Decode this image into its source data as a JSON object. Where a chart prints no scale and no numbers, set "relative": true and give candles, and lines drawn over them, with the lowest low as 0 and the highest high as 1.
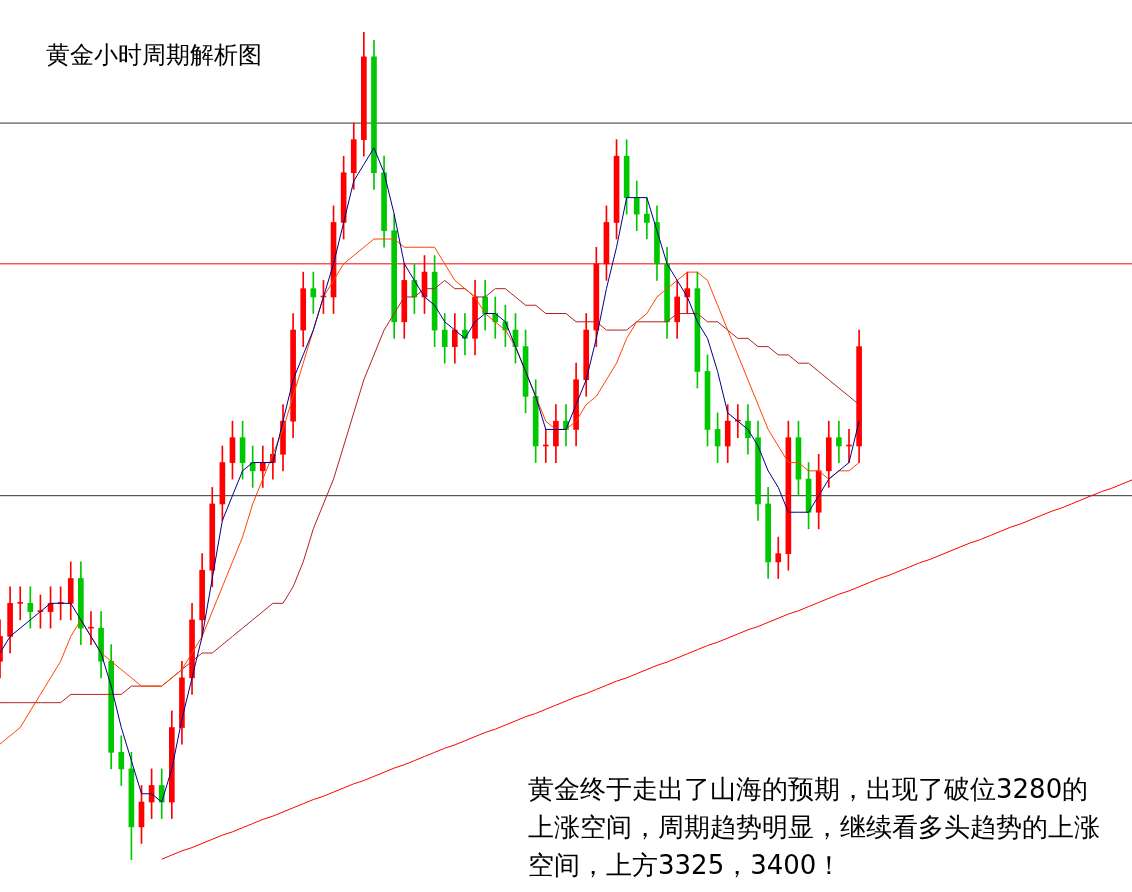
{
  "chart_data": {
    "type": "candlestick",
    "title": "黄金小时周期解析图",
    "relative": true,
    "categories": [
      null,
      null,
      null,
      null,
      null,
      null,
      null,
      null,
      null,
      null,
      null,
      null,
      null,
      null,
      null,
      null,
      null,
      null,
      null,
      null,
      null,
      null,
      null,
      null,
      null,
      null,
      null,
      null,
      null,
      null,
      null,
      null,
      null,
      null,
      null,
      null,
      null,
      null,
      null,
      null,
      null,
      null,
      null,
      null,
      null,
      null,
      null,
      null,
      null,
      null,
      null,
      null,
      null,
      null,
      null,
      null,
      null,
      null,
      null,
      null,
      null,
      null,
      null,
      null,
      null,
      null,
      null,
      null,
      null,
      null,
      null,
      null,
      null,
      null,
      null,
      null,
      null,
      null,
      null,
      null,
      null,
      null,
      null,
      null,
      null,
      null,
      null,
      null,
      null,
      null,
      null,
      null,
      null,
      null,
      null,
      null,
      null,
      null,
      null,
      null,
      null,
      null,
      null,
      null,
      null,
      null,
      null,
      null,
      null,
      null,
      null,
      null,
      null
    ],
    "ohlc": [
      [
        0.24,
        0.29,
        0.22,
        0.27
      ],
      [
        0.27,
        0.33,
        0.25,
        0.31
      ],
      [
        0.31,
        0.33,
        0.29,
        0.31
      ],
      [
        0.31,
        0.33,
        0.28,
        0.3
      ],
      [
        0.3,
        0.32,
        0.28,
        0.3
      ],
      [
        0.3,
        0.33,
        0.28,
        0.31
      ],
      [
        0.31,
        0.33,
        0.29,
        0.31
      ],
      [
        0.31,
        0.36,
        0.29,
        0.34
      ],
      [
        0.34,
        0.36,
        0.26,
        0.28
      ],
      [
        0.28,
        0.3,
        0.26,
        0.28
      ],
      [
        0.28,
        0.3,
        0.22,
        0.24
      ],
      [
        0.24,
        0.26,
        0.11,
        0.13
      ],
      [
        0.13,
        0.15,
        0.09,
        0.11
      ],
      [
        0.11,
        0.13,
        0.0,
        0.04
      ],
      [
        0.04,
        0.09,
        0.02,
        0.07
      ],
      [
        0.07,
        0.11,
        0.05,
        0.09
      ],
      [
        0.09,
        0.11,
        0.05,
        0.07
      ],
      [
        0.07,
        0.18,
        0.05,
        0.16
      ],
      [
        0.16,
        0.24,
        0.14,
        0.22
      ],
      [
        0.22,
        0.31,
        0.2,
        0.29
      ],
      [
        0.29,
        0.37,
        0.27,
        0.35
      ],
      [
        0.35,
        0.45,
        0.33,
        0.43
      ],
      [
        0.43,
        0.5,
        0.41,
        0.48
      ],
      [
        0.48,
        0.53,
        0.46,
        0.51
      ],
      [
        0.51,
        0.53,
        0.46,
        0.48
      ],
      [
        0.48,
        0.5,
        0.45,
        0.47
      ],
      [
        0.47,
        0.5,
        0.45,
        0.48
      ],
      [
        0.48,
        0.51,
        0.46,
        0.49
      ],
      [
        0.49,
        0.55,
        0.47,
        0.53
      ],
      [
        0.53,
        0.66,
        0.51,
        0.64
      ],
      [
        0.64,
        0.71,
        0.62,
        0.69
      ],
      [
        0.69,
        0.71,
        0.66,
        0.68
      ],
      [
        0.68,
        0.7,
        0.66,
        0.68
      ],
      [
        0.68,
        0.79,
        0.66,
        0.77
      ],
      [
        0.77,
        0.85,
        0.75,
        0.83
      ],
      [
        0.83,
        0.89,
        0.81,
        0.87
      ],
      [
        0.87,
        1.0,
        0.85,
        0.97
      ],
      [
        0.97,
        0.99,
        0.81,
        0.83
      ],
      [
        0.83,
        0.85,
        0.74,
        0.76
      ],
      [
        0.76,
        0.78,
        0.63,
        0.65
      ],
      [
        0.65,
        0.72,
        0.63,
        0.7
      ],
      [
        0.7,
        0.72,
        0.66,
        0.68
      ],
      [
        0.68,
        0.73,
        0.66,
        0.71
      ],
      [
        0.71,
        0.73,
        0.62,
        0.64
      ],
      [
        0.64,
        0.66,
        0.6,
        0.62
      ],
      [
        0.62,
        0.66,
        0.6,
        0.64
      ],
      [
        0.64,
        0.66,
        0.61,
        0.63
      ],
      [
        0.63,
        0.7,
        0.61,
        0.68
      ],
      [
        0.68,
        0.7,
        0.64,
        0.66
      ],
      [
        0.66,
        0.68,
        0.63,
        0.65
      ],
      [
        0.65,
        0.67,
        0.62,
        0.64
      ],
      [
        0.64,
        0.66,
        0.6,
        0.62
      ],
      [
        0.62,
        0.64,
        0.54,
        0.56
      ],
      [
        0.56,
        0.58,
        0.48,
        0.5
      ],
      [
        0.5,
        0.52,
        0.48,
        0.5
      ],
      [
        0.5,
        0.55,
        0.48,
        0.53
      ],
      [
        0.53,
        0.55,
        0.5,
        0.52
      ],
      [
        0.52,
        0.6,
        0.5,
        0.58
      ],
      [
        0.58,
        0.66,
        0.56,
        0.64
      ],
      [
        0.64,
        0.74,
        0.62,
        0.72
      ],
      [
        0.72,
        0.79,
        0.7,
        0.77
      ],
      [
        0.77,
        0.87,
        0.75,
        0.85
      ],
      [
        0.85,
        0.87,
        0.78,
        0.8
      ],
      [
        0.8,
        0.82,
        0.76,
        0.78
      ],
      [
        0.78,
        0.8,
        0.75,
        0.77
      ],
      [
        0.77,
        0.79,
        0.7,
        0.72
      ],
      [
        0.72,
        0.74,
        0.63,
        0.65
      ],
      [
        0.65,
        0.7,
        0.63,
        0.68
      ],
      [
        0.68,
        0.71,
        0.66,
        0.69
      ],
      [
        0.69,
        0.71,
        0.57,
        0.59
      ],
      [
        0.59,
        0.61,
        0.5,
        0.52
      ],
      [
        0.52,
        0.54,
        0.48,
        0.5
      ],
      [
        0.5,
        0.55,
        0.48,
        0.53
      ],
      [
        0.53,
        0.55,
        0.51,
        0.53
      ],
      [
        0.53,
        0.55,
        0.49,
        0.51
      ],
      [
        0.51,
        0.53,
        0.41,
        0.43
      ],
      [
        0.43,
        0.45,
        0.34,
        0.36
      ],
      [
        0.36,
        0.39,
        0.34,
        0.37
      ],
      [
        0.37,
        0.53,
        0.35,
        0.51
      ],
      [
        0.51,
        0.53,
        0.44,
        0.46
      ],
      [
        0.46,
        0.48,
        0.4,
        0.42
      ],
      [
        0.42,
        0.49,
        0.4,
        0.47
      ],
      [
        0.47,
        0.53,
        0.45,
        0.51
      ],
      [
        0.51,
        0.53,
        0.48,
        0.5
      ],
      [
        0.5,
        0.52,
        0.48,
        0.5
      ],
      [
        0.5,
        0.64,
        0.48,
        0.62
      ],
      null,
      null,
      null,
      null,
      null,
      null,
      null,
      null,
      null,
      null,
      null,
      null,
      null,
      null,
      null,
      null,
      null,
      null,
      null,
      null,
      null,
      null,
      null,
      null,
      null,
      null,
      null
    ],
    "series": [
      {
        "type": "line",
        "color": "#00008b",
        "values": [
          0.25,
          0.27,
          0.28,
          0.29,
          0.3,
          0.31,
          0.31,
          0.31,
          0.29,
          0.27,
          0.25,
          0.21,
          0.16,
          0.12,
          0.08,
          0.08,
          0.07,
          0.11,
          0.17,
          0.22,
          0.27,
          0.34,
          0.41,
          0.44,
          0.47,
          0.48,
          0.48,
          0.48,
          0.53,
          0.58,
          0.61,
          0.64,
          0.68,
          0.72,
          0.77,
          0.82,
          0.84,
          0.86,
          0.83,
          0.78,
          0.72,
          0.7,
          0.68,
          0.67,
          0.65,
          0.64,
          0.63,
          0.65,
          0.66,
          0.66,
          0.65,
          0.62,
          0.59,
          0.56,
          0.52,
          0.52,
          0.52,
          0.55,
          0.58,
          0.63,
          0.69,
          0.74,
          0.8,
          0.8,
          0.8,
          0.76,
          0.72,
          0.7,
          0.68,
          0.65,
          0.63,
          0.59,
          0.54,
          0.53,
          0.52,
          0.5,
          0.47,
          0.45,
          0.42,
          0.42,
          0.42,
          0.44,
          0.46,
          0.47,
          0.48,
          0.53,
          null,
          null,
          null,
          null,
          null,
          null,
          null,
          null,
          null,
          null,
          null,
          null,
          null,
          null,
          null,
          null,
          null,
          null,
          null,
          null,
          null,
          null,
          null,
          null,
          null,
          null,
          null
        ]
      },
      {
        "type": "line",
        "color": "#ff4500",
        "values": [
          0.14,
          0.15,
          0.16,
          0.18,
          0.2,
          0.22,
          0.24,
          0.27,
          0.29,
          0.27,
          0.25,
          0.24,
          0.23,
          0.22,
          0.21,
          0.21,
          0.21,
          0.22,
          0.23,
          0.25,
          0.27,
          0.3,
          0.33,
          0.36,
          0.39,
          0.43,
          0.46,
          0.49,
          0.52,
          0.56,
          0.6,
          0.64,
          0.68,
          0.7,
          0.72,
          0.73,
          0.74,
          0.75,
          0.75,
          0.75,
          0.74,
          0.74,
          0.74,
          0.74,
          0.72,
          0.7,
          0.69,
          0.68,
          0.66,
          0.65,
          0.64,
          0.62,
          0.59,
          0.56,
          0.53,
          0.52,
          0.52,
          0.53,
          0.55,
          0.56,
          0.58,
          0.6,
          0.63,
          0.65,
          0.66,
          0.68,
          0.69,
          0.7,
          0.71,
          0.71,
          0.7,
          0.67,
          0.64,
          0.61,
          0.58,
          0.55,
          0.52,
          0.5,
          0.48,
          0.48,
          0.47,
          0.47,
          0.46,
          0.47,
          0.47,
          0.48,
          null,
          null,
          null,
          null,
          null,
          null,
          null,
          null,
          null,
          null,
          null,
          null,
          null,
          null,
          null,
          null,
          null,
          null,
          null,
          null,
          null,
          null,
          null,
          null,
          null,
          null,
          null
        ]
      },
      {
        "type": "line",
        "color": "#b22222",
        "values": [
          0.19,
          0.19,
          0.19,
          0.19,
          0.19,
          0.19,
          0.19,
          0.2,
          0.2,
          0.2,
          0.2,
          0.2,
          0.2,
          0.21,
          0.21,
          0.21,
          0.21,
          0.22,
          0.23,
          0.24,
          0.25,
          0.25,
          0.26,
          0.27,
          0.28,
          0.29,
          0.3,
          0.31,
          0.31,
          0.33,
          0.36,
          0.4,
          0.43,
          0.46,
          0.5,
          0.54,
          0.58,
          0.61,
          0.64,
          0.66,
          0.68,
          0.68,
          0.69,
          0.69,
          0.7,
          0.69,
          0.69,
          0.68,
          0.68,
          0.69,
          0.69,
          0.68,
          0.67,
          0.67,
          0.66,
          0.66,
          0.66,
          0.65,
          0.65,
          0.65,
          0.64,
          0.64,
          0.64,
          0.65,
          0.65,
          0.65,
          0.65,
          0.66,
          0.66,
          0.66,
          0.65,
          0.65,
          0.64,
          0.63,
          0.63,
          0.62,
          0.62,
          0.61,
          0.61,
          0.6,
          0.6,
          0.59,
          0.58,
          0.57,
          0.56,
          0.55,
          null,
          null,
          null,
          null,
          null,
          null,
          null,
          null,
          null,
          null,
          null,
          null,
          null,
          null,
          null,
          null,
          null,
          null,
          null,
          null,
          null,
          null,
          null,
          null,
          null,
          null,
          null
        ]
      },
      {
        "type": "line",
        "color": "#ff0000",
        "values": [
          null,
          null,
          null,
          null,
          null,
          null,
          null,
          null,
          null,
          null,
          null,
          null,
          null,
          null,
          null,
          null,
          0.001,
          0.006,
          0.011,
          0.015,
          0.02,
          0.025,
          0.03,
          0.034,
          0.039,
          0.044,
          0.049,
          0.053,
          0.058,
          0.063,
          0.068,
          0.073,
          0.077,
          0.082,
          0.087,
          0.092,
          0.096,
          0.101,
          0.106,
          0.111,
          0.115,
          0.12,
          0.125,
          0.13,
          0.135,
          0.139,
          0.144,
          0.149,
          0.154,
          0.158,
          0.163,
          0.168,
          0.173,
          0.177,
          0.182,
          0.187,
          0.192,
          0.197,
          0.201,
          0.206,
          0.211,
          0.216,
          0.22,
          0.225,
          0.23,
          0.235,
          0.239,
          0.244,
          0.249,
          0.254,
          0.259,
          0.263,
          0.268,
          0.273,
          0.278,
          0.282,
          0.287,
          0.292,
          0.297,
          0.301,
          0.306,
          0.311,
          0.316,
          0.321,
          0.325,
          0.33,
          0.335,
          0.34,
          0.344,
          0.349,
          0.354,
          0.359,
          0.363,
          0.368,
          0.373,
          0.378,
          0.383,
          0.387,
          0.392,
          0.397,
          0.402,
          0.406,
          0.411,
          0.416,
          0.421,
          0.425,
          0.43,
          0.435,
          0.44,
          0.445,
          0.449,
          0.454,
          0.459
        ]
      }
    ],
    "ref_lines": [
      {
        "axis": "y",
        "value": 0.89,
        "color": "#333333"
      },
      {
        "axis": "y",
        "value": 0.72,
        "color": "#ff0000"
      },
      {
        "axis": "y",
        "value": 0.44,
        "color": "#333333"
      }
    ],
    "annotations": [
      "黄金终于走出了山海的预期，出现了破位3280的上涨空间，周期趋势明显，继续看多头趋势的上涨空间，上方3325，3400！"
    ]
  }
}
